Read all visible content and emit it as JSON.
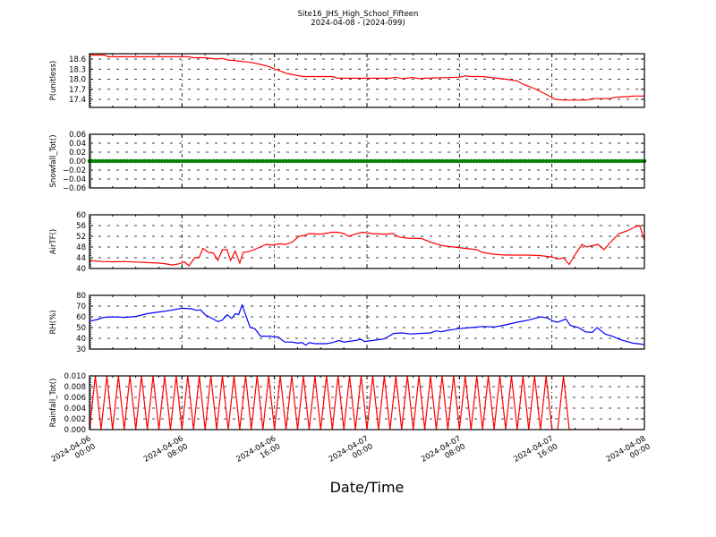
{
  "title": "Site16_JHS_High_School_Fifteen",
  "subtitle": "2024-04-08 - (2024-099)",
  "chart_data": [
    {
      "type": "line",
      "ylabel": "P(unitless)",
      "ylim": [
        17.16,
        18.76
      ],
      "yticks": [
        17.4,
        17.7,
        18.0,
        18.3,
        18.6
      ],
      "ytick_labels": [
        "17.4",
        "17.7",
        "18.0",
        "18.3",
        "18.6"
      ],
      "color": "#ff0000",
      "marker": "line",
      "points": [
        [
          0,
          18.72
        ],
        [
          1.3,
          18.72
        ],
        [
          1.6,
          18.67
        ],
        [
          8.5,
          18.67
        ],
        [
          9,
          18.64
        ],
        [
          10,
          18.64
        ],
        [
          11,
          18.6
        ],
        [
          11.5,
          18.62
        ],
        [
          12,
          18.57
        ],
        [
          13,
          18.54
        ],
        [
          14,
          18.5
        ],
        [
          14.8,
          18.44
        ],
        [
          15.5,
          18.38
        ],
        [
          16.2,
          18.28
        ],
        [
          17,
          18.18
        ],
        [
          17.8,
          18.12
        ],
        [
          18.5,
          18.08
        ],
        [
          21,
          18.08
        ],
        [
          21.5,
          18.03
        ],
        [
          26,
          18.03
        ],
        [
          26.5,
          18.06
        ],
        [
          27,
          18.02
        ],
        [
          28,
          18.05
        ],
        [
          28.5,
          18.02
        ],
        [
          29,
          18.03
        ],
        [
          32,
          18.06
        ],
        [
          32.5,
          18.1
        ],
        [
          33,
          18.08
        ],
        [
          34,
          18.08
        ],
        [
          35,
          18.04
        ],
        [
          36,
          18.0
        ],
        [
          37,
          17.95
        ],
        [
          37.5,
          17.85
        ],
        [
          38.5,
          17.72
        ],
        [
          39.5,
          17.55
        ],
        [
          40.3,
          17.4
        ],
        [
          41,
          17.38
        ],
        [
          43,
          17.38
        ],
        [
          43.5,
          17.42
        ],
        [
          45,
          17.42
        ],
        [
          45.5,
          17.46
        ],
        [
          46.5,
          17.48
        ],
        [
          47,
          17.5
        ],
        [
          48,
          17.5
        ]
      ]
    },
    {
      "type": "scatter",
      "ylabel": "Snowfall_Tot()",
      "ylim": [
        -0.06,
        0.06
      ],
      "yticks": [
        -0.06,
        -0.04,
        -0.02,
        0,
        0.02,
        0.04,
        0.06
      ],
      "ytick_labels": [
        "−0.06",
        "−0.04",
        "−0.02",
        "0.00",
        "0.02",
        "0.04",
        "0.06"
      ],
      "color": "#008000",
      "marker": "dots",
      "constant_value": 0,
      "x_range": [
        0,
        48
      ]
    },
    {
      "type": "line",
      "ylabel": "AirTF()",
      "ylim": [
        40,
        60
      ],
      "yticks": [
        40,
        44,
        48,
        52,
        56,
        60
      ],
      "ytick_labels": [
        "40",
        "44",
        "48",
        "52",
        "56",
        "60"
      ],
      "color": "#ff0000",
      "marker": "line",
      "points": [
        [
          0,
          43
        ],
        [
          1,
          42.6
        ],
        [
          2,
          42.5
        ],
        [
          3,
          42.6
        ],
        [
          4,
          42.4
        ],
        [
          5,
          42.2
        ],
        [
          6,
          42
        ],
        [
          6.5,
          41.8
        ],
        [
          7.2,
          41.3
        ],
        [
          7.8,
          41.8
        ],
        [
          8.2,
          42.5
        ],
        [
          8.6,
          41
        ],
        [
          9.1,
          44
        ],
        [
          9.5,
          44.2
        ],
        [
          9.8,
          47.5
        ],
        [
          10.3,
          46
        ],
        [
          10.7,
          45.8
        ],
        [
          11.1,
          43
        ],
        [
          11.5,
          47
        ],
        [
          11.9,
          47
        ],
        [
          12.2,
          43
        ],
        [
          12.6,
          46.5
        ],
        [
          13,
          42
        ],
        [
          13.3,
          46
        ],
        [
          13.8,
          46.3
        ],
        [
          14.5,
          47.5
        ],
        [
          15.3,
          49
        ],
        [
          15.8,
          48.7
        ],
        [
          16.4,
          49.2
        ],
        [
          17,
          49
        ],
        [
          17.6,
          50
        ],
        [
          18.1,
          52
        ],
        [
          18.6,
          52.3
        ],
        [
          19,
          53
        ],
        [
          20,
          52.8
        ],
        [
          21,
          53.5
        ],
        [
          21.5,
          53.5
        ],
        [
          22,
          53
        ],
        [
          22.4,
          52
        ],
        [
          23,
          52.8
        ],
        [
          23.6,
          53.5
        ],
        [
          24.5,
          53
        ],
        [
          25.5,
          52.8
        ],
        [
          26.3,
          53
        ],
        [
          26.7,
          51.8
        ],
        [
          27.5,
          51.3
        ],
        [
          28.7,
          51.2
        ],
        [
          29.5,
          49.8
        ],
        [
          30.5,
          48.5
        ],
        [
          31.5,
          48
        ],
        [
          32.5,
          47.5
        ],
        [
          33.5,
          47
        ],
        [
          34,
          46
        ],
        [
          35,
          45.3
        ],
        [
          36,
          45
        ],
        [
          38,
          45
        ],
        [
          39,
          44.8
        ],
        [
          40,
          44.3
        ],
        [
          40.5,
          43.5
        ],
        [
          41,
          44
        ],
        [
          41.5,
          41.5
        ],
        [
          41.9,
          44.5
        ],
        [
          42.6,
          49
        ],
        [
          43,
          48
        ],
        [
          43.5,
          48.5
        ],
        [
          44,
          49
        ],
        [
          44.5,
          47
        ],
        [
          45,
          49.5
        ],
        [
          45.8,
          53
        ],
        [
          46.5,
          54
        ],
        [
          47.2,
          55.5
        ],
        [
          47.6,
          56
        ],
        [
          48,
          50.5
        ]
      ]
    },
    {
      "type": "line",
      "ylabel": "RH(%)",
      "ylim": [
        30,
        80
      ],
      "yticks": [
        30,
        40,
        50,
        60,
        70,
        80
      ],
      "ytick_labels": [
        "30",
        "40",
        "50",
        "60",
        "70",
        "80"
      ],
      "color": "#0000ff",
      "marker": "line",
      "points": [
        [
          0,
          56
        ],
        [
          0.7,
          57.5
        ],
        [
          1.2,
          59.5
        ],
        [
          2,
          60
        ],
        [
          3,
          59.5
        ],
        [
          4,
          60.3
        ],
        [
          5,
          63
        ],
        [
          6,
          64.5
        ],
        [
          7,
          66
        ],
        [
          8,
          68
        ],
        [
          8.8,
          67.5
        ],
        [
          9.3,
          66
        ],
        [
          9.6,
          66.5
        ],
        [
          10,
          62
        ],
        [
          10.7,
          58
        ],
        [
          11.1,
          55.5
        ],
        [
          11.5,
          57
        ],
        [
          11.9,
          62
        ],
        [
          12.3,
          58.5
        ],
        [
          12.6,
          63
        ],
        [
          12.9,
          62
        ],
        [
          13.2,
          71
        ],
        [
          13.9,
          50
        ],
        [
          14.3,
          49
        ],
        [
          14.8,
          42
        ],
        [
          15.7,
          42
        ],
        [
          16,
          41
        ],
        [
          16.3,
          41.5
        ],
        [
          16.9,
          36.5
        ],
        [
          17.5,
          36.5
        ],
        [
          18,
          35.5
        ],
        [
          18.4,
          36
        ],
        [
          18.7,
          33.5
        ],
        [
          19,
          36
        ],
        [
          19.5,
          35
        ],
        [
          20.5,
          35
        ],
        [
          21,
          36
        ],
        [
          21.6,
          38
        ],
        [
          22,
          36.5
        ],
        [
          23,
          38
        ],
        [
          23.5,
          39
        ],
        [
          23.8,
          37
        ],
        [
          24.5,
          38
        ],
        [
          25.5,
          39.5
        ],
        [
          26.3,
          44.5
        ],
        [
          27,
          45
        ],
        [
          27.8,
          44
        ],
        [
          28.5,
          44.5
        ],
        [
          29.5,
          45
        ],
        [
          30,
          47
        ],
        [
          30.4,
          46
        ],
        [
          31,
          47.5
        ],
        [
          32,
          49
        ],
        [
          33,
          50
        ],
        [
          34,
          51
        ],
        [
          35,
          50.5
        ],
        [
          36,
          52.5
        ],
        [
          37,
          55
        ],
        [
          38,
          57
        ],
        [
          39,
          60
        ],
        [
          39.6,
          59
        ],
        [
          40.1,
          56
        ],
        [
          40.5,
          55
        ],
        [
          41.2,
          58
        ],
        [
          41.6,
          52
        ],
        [
          42.3,
          50
        ],
        [
          42.9,
          46
        ],
        [
          43.5,
          45.5
        ],
        [
          43.9,
          50
        ],
        [
          44.6,
          44
        ],
        [
          45.2,
          42
        ],
        [
          46,
          38.5
        ],
        [
          46.5,
          37
        ],
        [
          47,
          35.5
        ],
        [
          47.8,
          34.5
        ],
        [
          48,
          34
        ]
      ]
    },
    {
      "type": "line",
      "ylabel": "Rainfall_Tot()",
      "ylim": [
        0,
        0.01
      ],
      "yticks": [
        0,
        0.002,
        0.004,
        0.006,
        0.008,
        0.01
      ],
      "ytick_labels": [
        "0.000",
        "0.002",
        "0.004",
        "0.006",
        "0.008",
        "0.010"
      ],
      "color": "#ff0000",
      "marker": "line",
      "x_start": 0,
      "x_step": 0.5,
      "values": [
        0,
        0.01,
        0,
        0.01,
        0,
        0.01,
        0,
        0.01,
        0,
        0.01,
        0,
        0.01,
        0,
        0.01,
        0,
        0.01,
        0,
        0.01,
        0,
        0.01,
        0,
        0.01,
        0,
        0.01,
        0,
        0.01,
        0,
        0.01,
        0,
        0.01,
        0,
        0.01,
        0,
        0.01,
        0,
        0.01,
        0,
        0.01,
        0,
        0.01,
        0,
        0.01,
        0,
        0.01,
        0,
        0.01,
        0,
        0.01,
        0,
        0.01,
        0,
        0.01,
        0,
        0.01,
        0,
        0.01,
        0,
        0.01,
        0,
        0.01,
        0,
        0.01,
        0,
        0.01,
        0,
        0.01,
        0,
        0.01,
        0,
        0.01,
        0,
        0.01,
        0,
        0.01,
        0,
        0.01,
        0,
        0.01,
        0,
        0.01,
        0,
        0,
        0.01,
        0,
        0,
        0,
        0,
        0,
        0,
        0,
        0,
        0,
        0,
        0,
        0,
        0,
        0
      ]
    }
  ],
  "x_axis": {
    "label": "Date/Time",
    "range_hours": [
      0,
      48
    ],
    "ticks_hours": [
      0,
      8,
      16,
      24,
      32,
      40,
      48
    ],
    "tick_labels": [
      [
        "2024-04-06",
        "00:00"
      ],
      [
        "2024-04-06",
        "08:00"
      ],
      [
        "2024-04-06",
        "16:00"
      ],
      [
        "2024-04-07",
        "00:00"
      ],
      [
        "2024-04-07",
        "08:00"
      ],
      [
        "2024-04-07",
        "16:00"
      ],
      [
        "2024-04-08",
        "00:00"
      ]
    ]
  },
  "grid": true
}
